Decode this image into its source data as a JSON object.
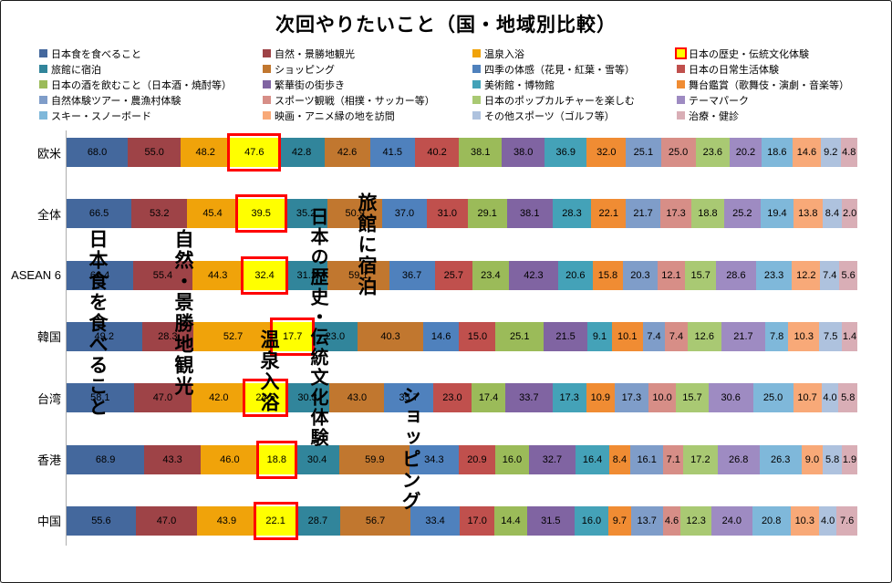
{
  "title": "次回やりたいこと（国・地域別比較）",
  "chart_data": {
    "type": "bar",
    "subtype": "horizontal-100pct-stacked",
    "legend_position": "top",
    "value_format": "one-decimal",
    "highlight_category_index": 3,
    "highlight_color": "#FF0000",
    "categories": [
      "日本食を食べること",
      "自然・景勝地観光",
      "温泉入浴",
      "日本の歴史・伝統文化体験",
      "旅館に宿泊",
      "ショッピング",
      "四季の体感（花見・紅葉・雪等）",
      "日本の日常生活体験",
      "日本の酒を飲むこと（日本酒・焼酎等）",
      "繁華街の街歩き",
      "美術館・博物館",
      "舞台鑑賞（歌舞伎・演劇・音楽等）",
      "自然体験ツアー・農漁村体験",
      "スポーツ観戦（相撲・サッカー等）",
      "日本のポップカルチャーを楽しむ",
      "テーマパーク",
      "スキー・スノーボード",
      "映画・アニメ縁の地を訪問",
      "その他スポーツ（ゴルフ等）",
      "治療・健診"
    ],
    "colors": [
      "#44689D",
      "#9E4347",
      "#F0A30A",
      "#FFFF00",
      "#31859B",
      "#C1772F",
      "#4F81BD",
      "#C0504D",
      "#9BBB59",
      "#8064A2",
      "#44A2B8",
      "#F08C33",
      "#7F9DC9",
      "#D78E87",
      "#A9C973",
      "#9E8BC2",
      "#7FB8DA",
      "#F8A978",
      "#AEC2DE",
      "#D9AEB6"
    ],
    "rows": [
      {
        "label": "欧米",
        "values": [
          68.0,
          55.0,
          48.2,
          47.6,
          42.8,
          42.6,
          41.5,
          40.2,
          38.1,
          38.0,
          36.9,
          32.0,
          25.1,
          25.0,
          23.6,
          20.2,
          18.6,
          14.6,
          9.2,
          4.8
        ]
      },
      {
        "label": "全体",
        "values": [
          66.5,
          53.2,
          45.4,
          39.5,
          35.2,
          50.9,
          37.0,
          31.0,
          29.1,
          38.1,
          28.3,
          22.1,
          21.7,
          17.3,
          18.8,
          25.2,
          19.4,
          13.8,
          8.4,
          2.0
        ]
      },
      {
        "label": "ASEAN 6",
        "values": [
          66.4,
          55.4,
          44.3,
          32.4,
          31.2,
          59.1,
          36.7,
          25.7,
          23.4,
          42.3,
          20.6,
          15.8,
          20.3,
          12.1,
          15.7,
          28.6,
          23.3,
          12.2,
          7.4,
          5.6
        ]
      },
      {
        "label": "韓国",
        "values": [
          49.2,
          28.3,
          52.7,
          17.7,
          23.0,
          40.3,
          14.6,
          15.0,
          25.1,
          21.5,
          9.1,
          10.1,
          7.4,
          7.4,
          12.6,
          21.7,
          7.8,
          10.3,
          7.5,
          1.4
        ]
      },
      {
        "label": "台湾",
        "values": [
          58.1,
          47.0,
          42.0,
          24.5,
          30.3,
          43.0,
          35.7,
          23.0,
          17.4,
          33.7,
          17.3,
          10.9,
          17.3,
          10.0,
          15.7,
          30.6,
          25.0,
          10.7,
          4.0,
          5.8
        ]
      },
      {
        "label": "香港",
        "values": [
          68.9,
          43.3,
          46.0,
          18.8,
          30.4,
          59.9,
          34.3,
          20.9,
          16.0,
          32.7,
          16.4,
          8.4,
          16.1,
          7.1,
          17.2,
          26.8,
          26.3,
          9.0,
          5.8,
          1.9
        ]
      },
      {
        "label": "中国",
        "values": [
          55.6,
          47.0,
          43.9,
          22.1,
          28.7,
          56.7,
          33.4,
          17.0,
          14.4,
          31.5,
          16.0,
          9.7,
          13.7,
          4.6,
          12.3,
          24.0,
          20.8,
          10.3,
          4.0,
          7.6
        ]
      }
    ],
    "annotations": [
      "日本食を食べること",
      "自然・景勝地観光",
      "温泉入浴",
      "日本の歴史・伝統文化体験",
      "旅館に宿泊",
      "ショッピング"
    ]
  }
}
